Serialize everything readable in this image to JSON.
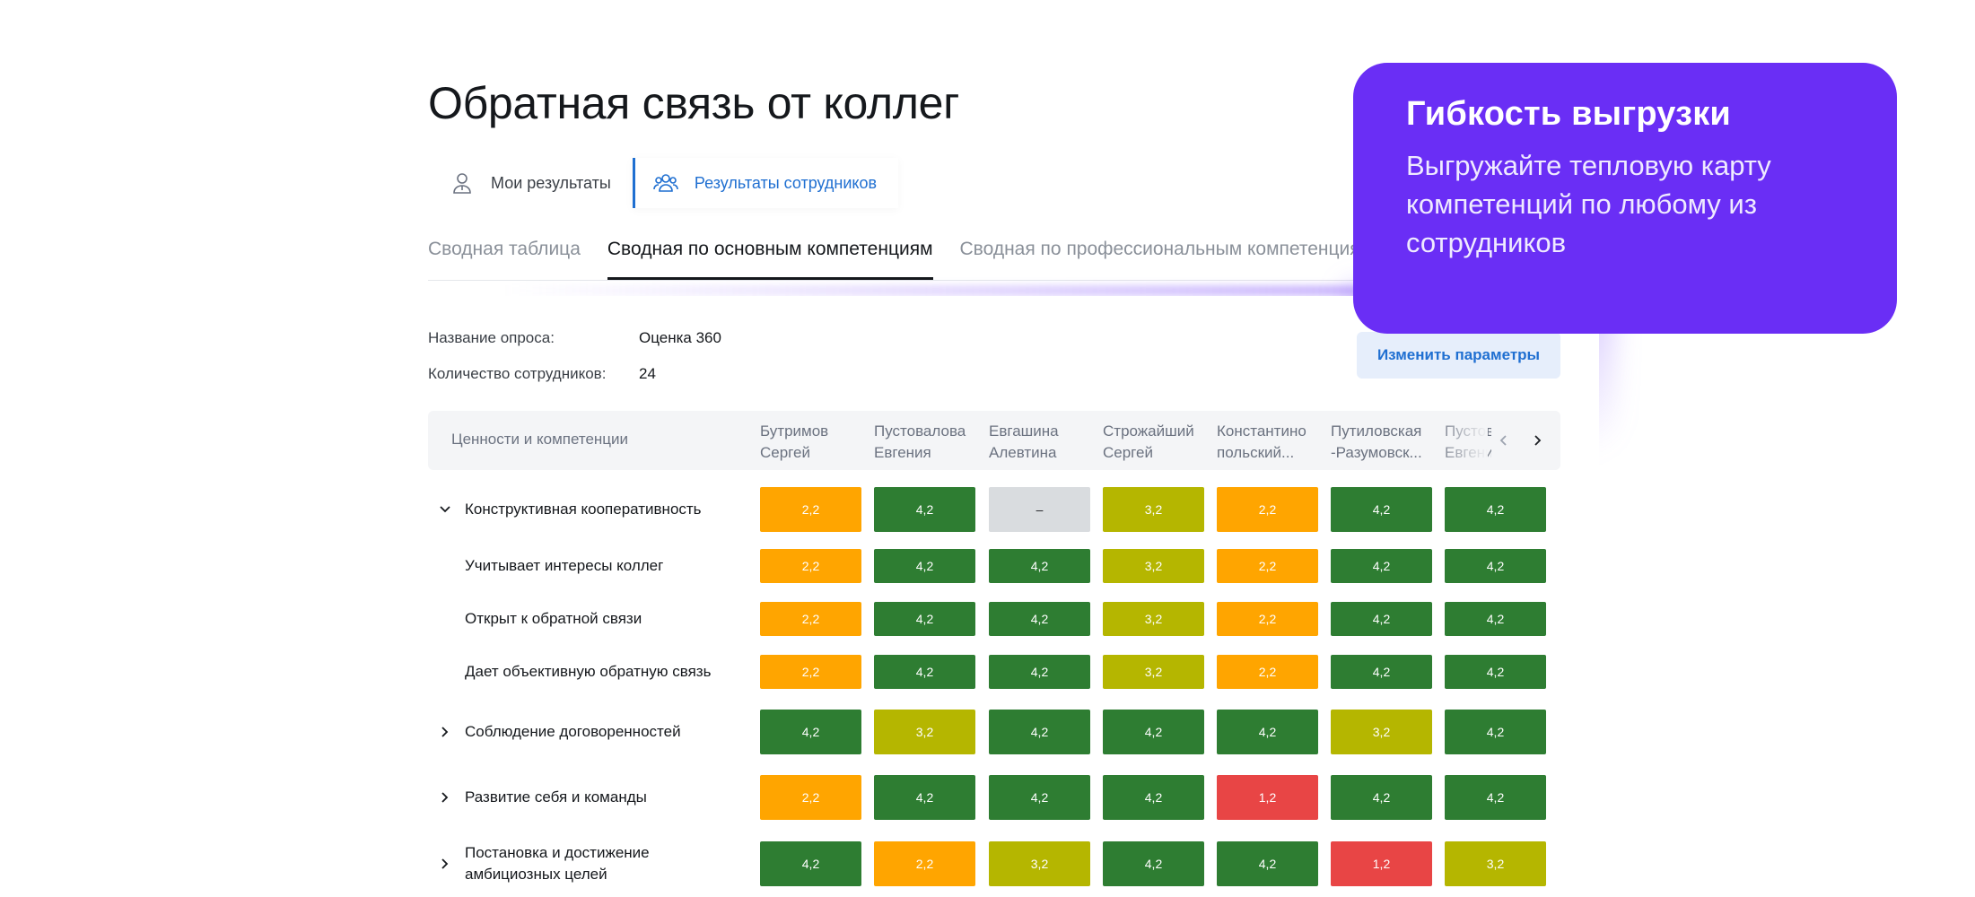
{
  "page": {
    "title": "Обратная связь от коллег"
  },
  "mode_tabs": [
    {
      "label": "Мои результаты",
      "active": false,
      "icon": "person-icon"
    },
    {
      "label": "Результаты сотрудников",
      "active": true,
      "icon": "people-icon"
    }
  ],
  "sub_tabs": [
    {
      "label": "Сводная таблица",
      "active": false
    },
    {
      "label": "Сводная по основным компетенциям",
      "active": true
    },
    {
      "label": "Сводная по профессиональным компетенциям",
      "active": false
    }
  ],
  "survey": {
    "name_label": "Название опроса:",
    "name_value": "Оценка 360",
    "count_label": "Количество сотрудников:",
    "count_value": "24"
  },
  "params_button": "Изменить параметры",
  "table": {
    "first_header": "Ценности и компетенции",
    "columns": [
      "Бутримов\nСергей",
      "Пустовалова\nЕвгения",
      "Евгашина\nАлевтина",
      "Строжайший\nСергей",
      "Константино\nпольский...",
      "Путиловская\n-Разумовск...",
      "Пустовалова\nЕвгения"
    ],
    "rows": [
      {
        "label": "Конструктивная кооперативность",
        "type": "group",
        "expanded": true,
        "values": [
          "2,2",
          "4,2",
          "–",
          "3,2",
          "2,2",
          "4,2",
          "4,2"
        ]
      },
      {
        "label": "Учитывает интересы коллег",
        "type": "child",
        "values": [
          "2,2",
          "4,2",
          "4,2",
          "3,2",
          "2,2",
          "4,2",
          "4,2"
        ]
      },
      {
        "label": "Открыт к обратной связи",
        "type": "child",
        "values": [
          "2,2",
          "4,2",
          "4,2",
          "3,2",
          "2,2",
          "4,2",
          "4,2"
        ]
      },
      {
        "label": "Дает объективную обратную связь",
        "type": "child",
        "values": [
          "2,2",
          "4,2",
          "4,2",
          "3,2",
          "2,2",
          "4,2",
          "4,2"
        ]
      },
      {
        "label": "Соблюдение договоренностей",
        "type": "group",
        "expanded": false,
        "values": [
          "4,2",
          "3,2",
          "4,2",
          "4,2",
          "4,2",
          "3,2",
          "4,2"
        ]
      },
      {
        "label": "Развитие себя и команды",
        "type": "group",
        "expanded": false,
        "values": [
          "2,2",
          "4,2",
          "4,2",
          "4,2",
          "1,2",
          "4,2",
          "4,2"
        ]
      },
      {
        "label": "Постановка и достижение\nамбициозных целей",
        "type": "group",
        "expanded": false,
        "values": [
          "4,2",
          "2,2",
          "3,2",
          "4,2",
          "4,2",
          "1,2",
          "3,2"
        ]
      }
    ],
    "colors": {
      "1,2": "#e84545",
      "2,2": "#ffa500",
      "3,2": "#b5b600",
      "4,2": "#2e7d32",
      "–": "#d9dcdf"
    }
  },
  "promo": {
    "title": "Гибкость выгрузки",
    "text": "Выгружайте тепловую карту компетенций по любому из сотрудников"
  }
}
